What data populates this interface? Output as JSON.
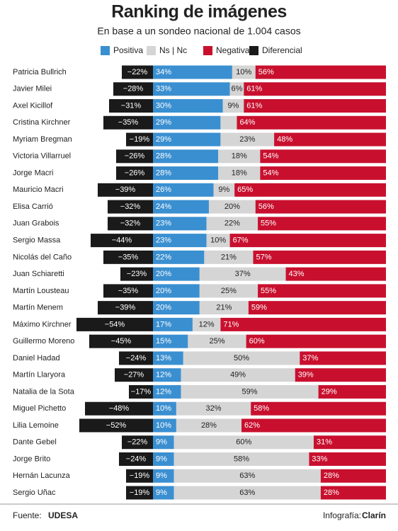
{
  "chart_data": {
    "type": "diverging-bar",
    "title": "Ranking de imágenes",
    "subtitle": "En base a un sondeo nacional de 1.004 casos",
    "categories": [
      "Patricia Bullrich",
      "Javier Milei",
      "Axel Kicillof",
      "Cristina Kirchner",
      "Myriam Bregman",
      "Victoria Villarruel",
      "Jorge Macri",
      "Mauricio Macri",
      "Elisa Carrió",
      "Juan Grabois",
      "Sergio Massa",
      "Nicolás del Caño",
      "Juan Schiaretti",
      "Martín Lousteau",
      "Martín Menem",
      "Máximo Kirchner",
      "Guillermo Moreno",
      "Daniel Hadad",
      "Martín Llaryora",
      "Natalia de la Sota",
      "Miguel Pichetto",
      "Lilia Lemoine",
      "Dante Gebel",
      "Jorge Brito",
      "Hernán Lacunza",
      "Sergio Uñac"
    ],
    "series": [
      {
        "name": "Positiva",
        "color": "#3a8fd0",
        "values": [
          34,
          33,
          30,
          29,
          29,
          28,
          28,
          26,
          24,
          23,
          23,
          22,
          20,
          20,
          20,
          17,
          15,
          13,
          12,
          12,
          10,
          10,
          9,
          9,
          9,
          9
        ],
        "value_labels": [
          "34%",
          "33%",
          "30%",
          "29%",
          "29%",
          "28%",
          "28%",
          "26%",
          "24%",
          "23%",
          "23%",
          "22%",
          "20%",
          "20%",
          "20%",
          "17%",
          "15%",
          "13%",
          "12%",
          "12%",
          "10%",
          "10%",
          "9%",
          "9%",
          "9%",
          "9%"
        ]
      },
      {
        "name": "Ns | Nc",
        "color": "#d5d5d5",
        "values": [
          10,
          6,
          9,
          7,
          23,
          18,
          18,
          9,
          20,
          22,
          10,
          21,
          37,
          25,
          21,
          12,
          25,
          50,
          49,
          59,
          32,
          28,
          60,
          58,
          63,
          63
        ],
        "value_labels": [
          "10%",
          "6%",
          "9%",
          null,
          "23%",
          "18%",
          "18%",
          "9%",
          "20%",
          "22%",
          "10%",
          "21%",
          "37%",
          "25%",
          "21%",
          "12%",
          "25%",
          "50%",
          "49%",
          "59%",
          "32%",
          "28%",
          "60%",
          "58%",
          "63%",
          "63%"
        ]
      },
      {
        "name": "Negativa",
        "color": "#c8102e",
        "values": [
          56,
          61,
          61,
          64,
          48,
          54,
          54,
          65,
          56,
          55,
          67,
          57,
          43,
          55,
          59,
          71,
          60,
          37,
          39,
          29,
          58,
          62,
          31,
          33,
          28,
          28
        ],
        "value_labels": [
          "56%",
          "61%",
          "61%",
          "64%",
          "48%",
          "54%",
          "54%",
          "65%",
          "56%",
          "55%",
          "67%",
          "57%",
          "43%",
          "55%",
          "59%",
          "71%",
          "60%",
          "37%",
          "39%",
          "29%",
          "58%",
          "62%",
          "31%",
          "33%",
          "28%",
          "28%"
        ]
      },
      {
        "name": "Diferencial",
        "color": "#1a1a1a",
        "values": [
          -22,
          -28,
          -31,
          -35,
          -19,
          -26,
          -26,
          -39,
          -32,
          -32,
          -44,
          -35,
          -23,
          -35,
          -39,
          -54,
          -45,
          -24,
          -27,
          -17,
          -48,
          -52,
          -22,
          -24,
          -19,
          -19
        ],
        "value_labels": [
          "−22%",
          "−28%",
          "−31%",
          "−35%",
          "−19%",
          "−26%",
          "−26%",
          "−39%",
          "−32%",
          "−32%",
          "−44%",
          "−35%",
          "−23%",
          "−35%",
          "−39%",
          "−54%",
          "−45%",
          "−24%",
          "−27%",
          "−17%",
          "−48%",
          "−52%",
          "−22%",
          "−24%",
          "−19%",
          "−19%"
        ]
      }
    ]
  },
  "footer": {
    "source_label": "Fuente:",
    "source": "UDESA",
    "credit_label": "Infografía:",
    "credit": "Clarín"
  }
}
